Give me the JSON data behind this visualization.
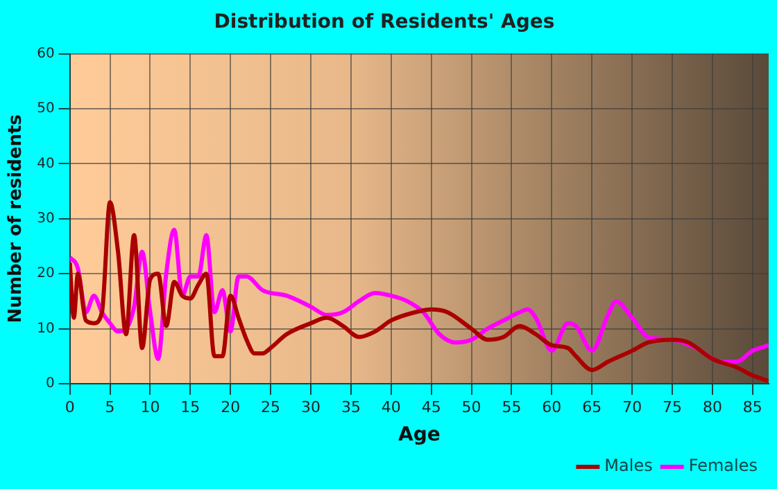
{
  "chart_data": {
    "type": "line",
    "title": "Distribution of Residents' Ages",
    "xlabel": "Age",
    "ylabel": "Number of residents",
    "xlim": [
      0,
      87
    ],
    "xticks": [
      0,
      5,
      10,
      15,
      20,
      25,
      30,
      35,
      40,
      45,
      50,
      55,
      60,
      65,
      70,
      75,
      80,
      85
    ],
    "ylim": [
      0,
      60
    ],
    "yticks": [
      0,
      10,
      20,
      30,
      40,
      50,
      60
    ],
    "grid": true,
    "legend": "bottom right",
    "marker": "none",
    "line_style": "solid",
    "series": [
      {
        "name": "Males",
        "color": "#aa0000",
        "x": [
          0,
          0.5,
          1,
          2,
          3,
          4,
          5,
          6,
          7,
          8,
          9,
          10,
          11,
          12,
          13,
          14,
          15,
          16,
          17,
          18,
          19,
          20,
          21,
          22,
          23,
          24,
          25,
          27,
          30,
          32,
          34,
          36,
          38,
          40,
          43,
          45,
          47,
          50,
          52,
          54,
          56,
          58,
          60,
          62,
          63,
          65,
          67,
          70,
          72,
          75,
          77,
          80,
          83,
          85,
          87
        ],
        "values": [
          22,
          12,
          20,
          11.5,
          11,
          13,
          33,
          24,
          9,
          27,
          6.5,
          19,
          20,
          10.5,
          18.5,
          16,
          15.5,
          18,
          20,
          5,
          5,
          16,
          12,
          8,
          5.5,
          5.5,
          6.5,
          9,
          11,
          12,
          10.5,
          8.5,
          9.5,
          11.5,
          13,
          13.5,
          13,
          10,
          8,
          8.5,
          10.5,
          9,
          7,
          6.5,
          5,
          2.5,
          4,
          6,
          7.5,
          8,
          7.5,
          4.5,
          3,
          1.5,
          0.5
        ]
      },
      {
        "name": "Females",
        "color": "#ff00ff",
        "x": [
          0,
          1,
          2,
          3,
          4,
          5,
          6,
          7,
          8,
          9,
          10,
          11,
          12,
          13,
          14,
          15,
          16,
          17,
          18,
          19,
          20,
          21,
          22,
          24,
          27,
          30,
          32,
          34,
          36,
          38,
          40,
          42,
          44,
          46,
          48,
          50,
          52,
          54,
          56,
          57,
          58,
          60,
          62,
          63,
          65,
          67,
          68,
          70,
          72,
          75,
          78,
          81,
          83,
          85,
          87
        ],
        "values": [
          23,
          21,
          13,
          16,
          13,
          11,
          9.5,
          10,
          14,
          24,
          13,
          4.5,
          20,
          28,
          16,
          19.5,
          19.5,
          27,
          13,
          17,
          9.5,
          19.5,
          19.5,
          17,
          16,
          14,
          12.5,
          13,
          15,
          16.5,
          16,
          15,
          13,
          9,
          7.5,
          8,
          10,
          11.5,
          13,
          13.5,
          12,
          6,
          11,
          10.5,
          6,
          12.5,
          15,
          12,
          8.5,
          8,
          6.5,
          4,
          4,
          6,
          7
        ]
      }
    ]
  }
}
